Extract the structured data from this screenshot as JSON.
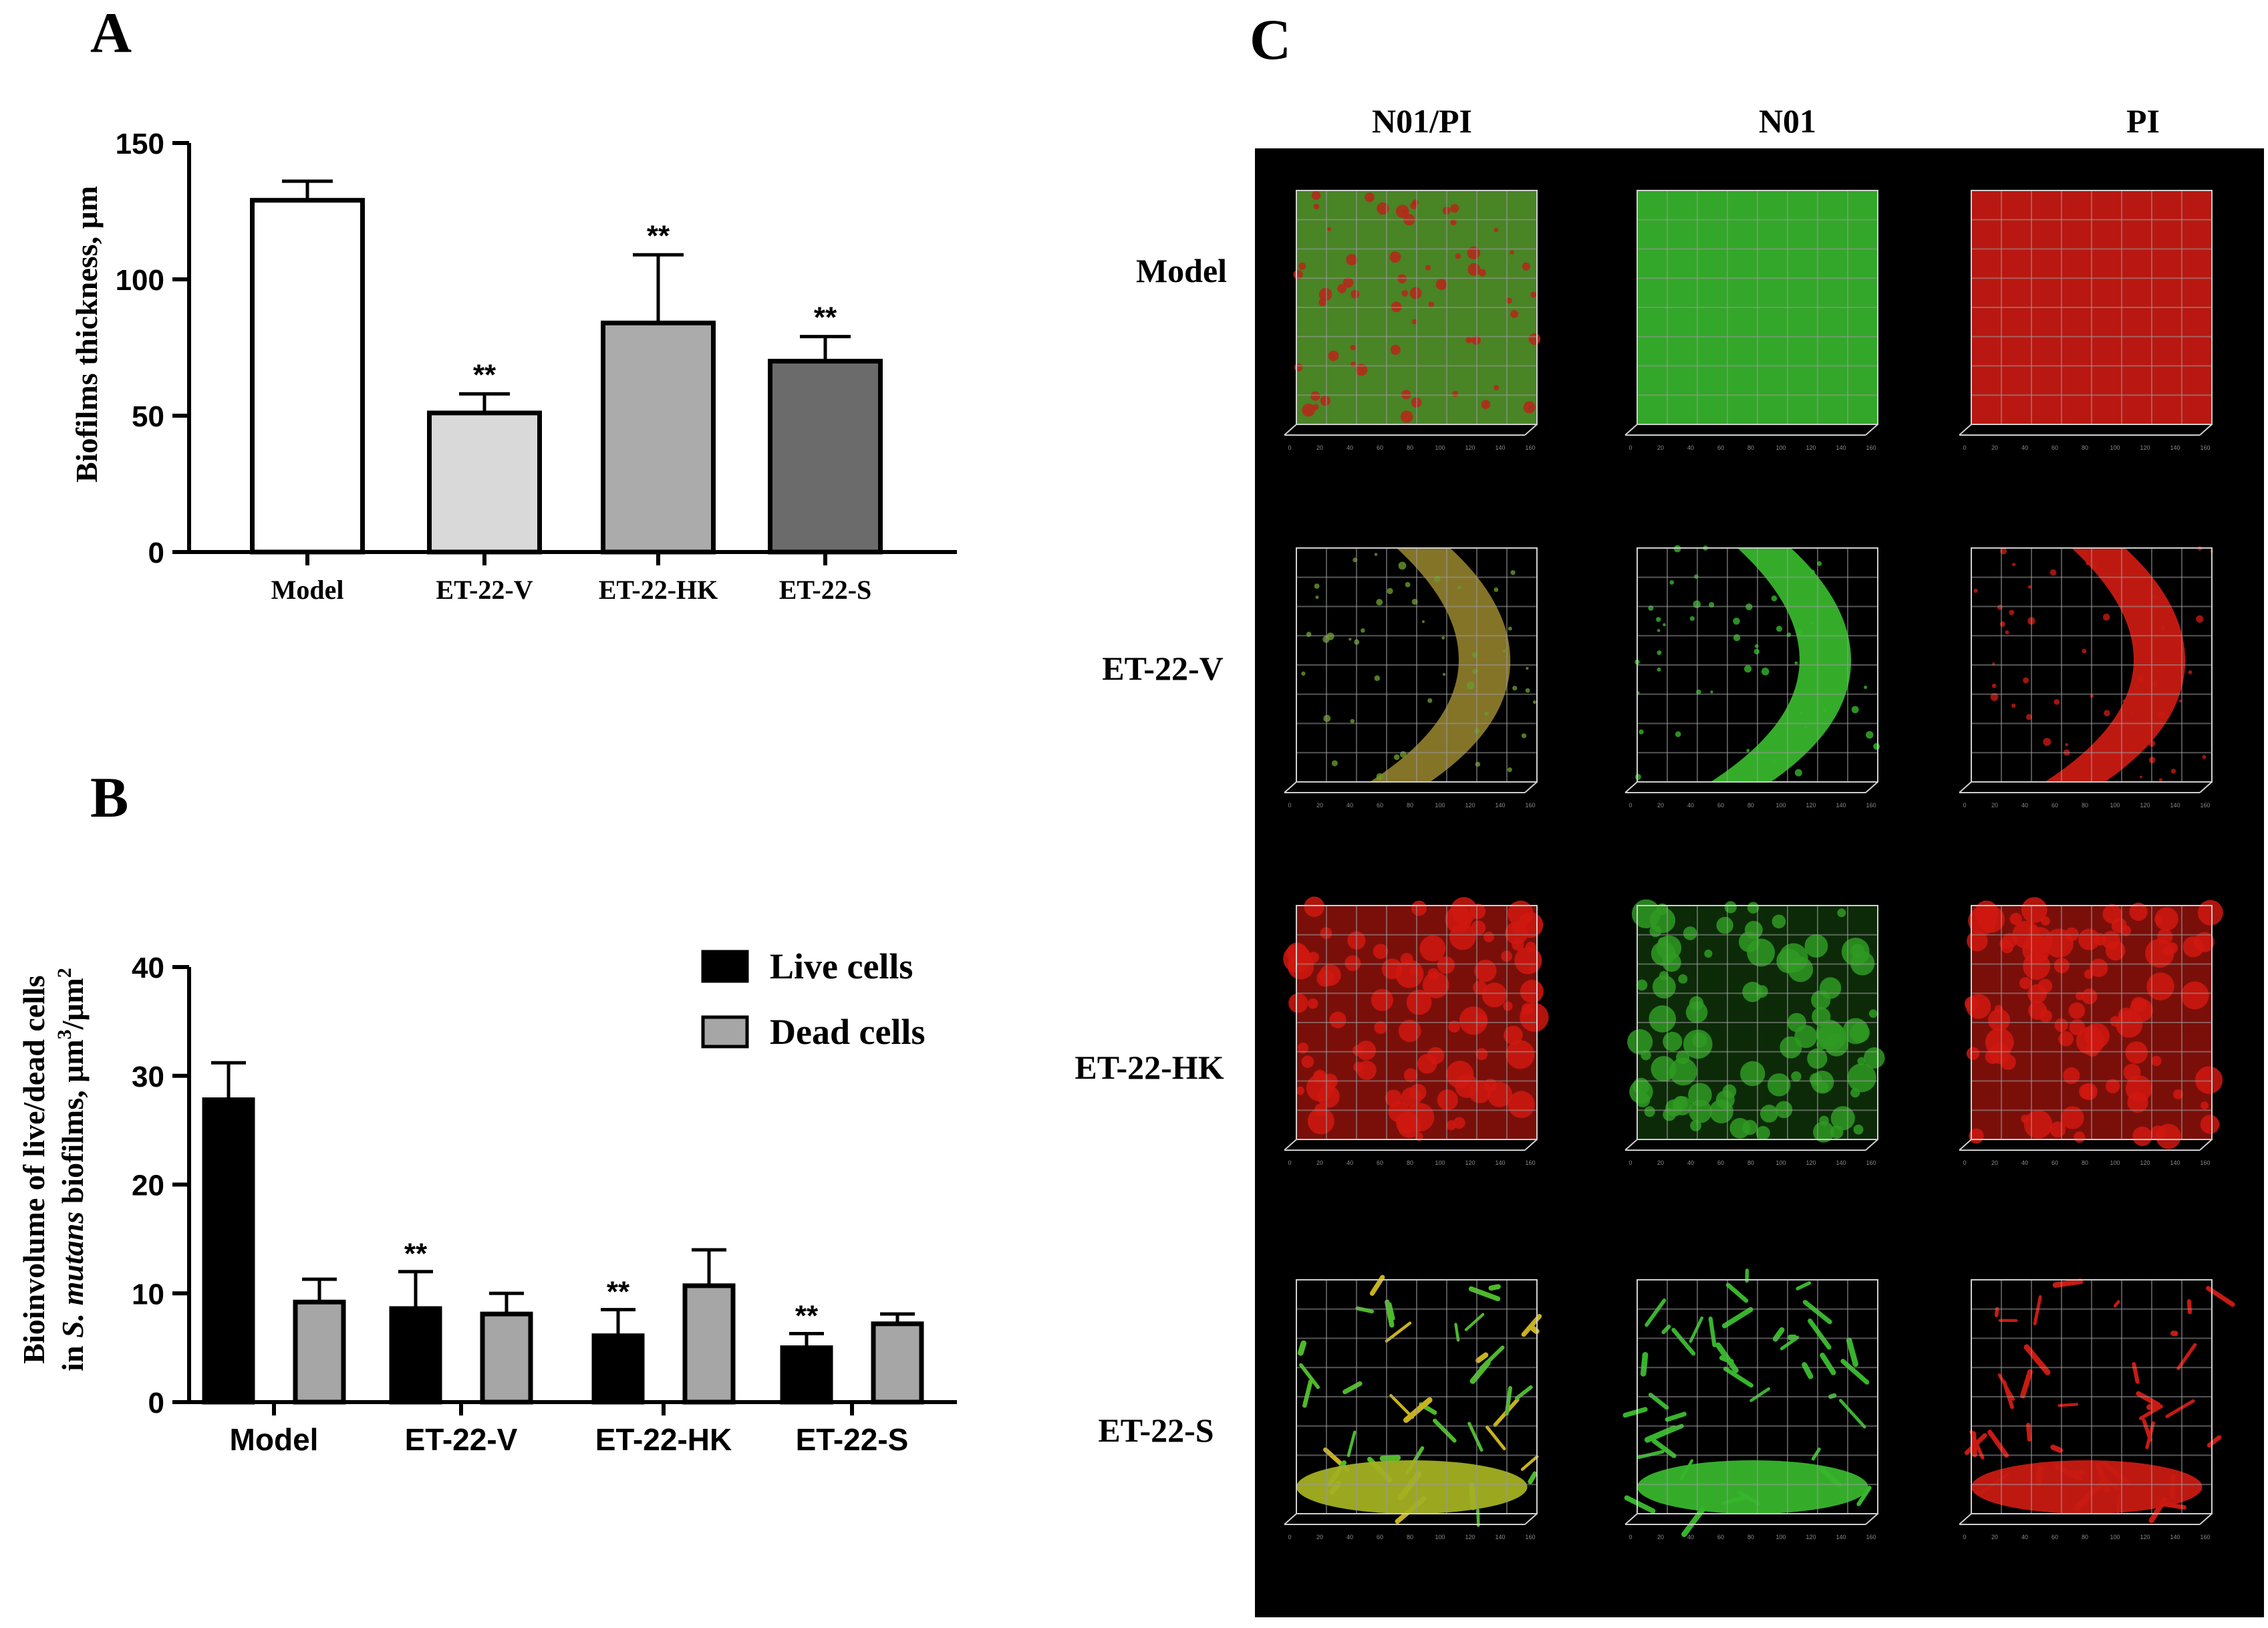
{
  "panels": {
    "A": "A",
    "B": "B",
    "C": "C"
  },
  "chart_data": [
    {
      "panel": "A",
      "type": "bar",
      "categories": [
        "Model",
        "ET-22-V",
        "ET-22-HK",
        "ET-22-S"
      ],
      "values": [
        129,
        51,
        84,
        70
      ],
      "errors": [
        7,
        7,
        25,
        9
      ],
      "significance": [
        "",
        "**",
        "**",
        "**"
      ],
      "bar_colors": [
        "#ffffff",
        "#d9d9d9",
        "#ababab",
        "#6b6b6b"
      ],
      "ylabel": "Biofilms thickness,  μm",
      "ylim": [
        0,
        150
      ],
      "yticks": [
        "0",
        "50",
        "100",
        "150"
      ],
      "grid": false
    },
    {
      "panel": "B",
      "type": "bar",
      "categories": [
        "Model",
        "ET-22-V",
        "ET-22-HK",
        "ET-22-S"
      ],
      "series": [
        {
          "name": "Live cells",
          "color": "#000000",
          "values": [
            27.8,
            8.6,
            6.1,
            5.0
          ],
          "errors": [
            3.4,
            3.4,
            2.4,
            1.3
          ],
          "significance": [
            "",
            "**",
            "**",
            "**"
          ]
        },
        {
          "name": "Dead cells",
          "color": "#a6a6a6",
          "values": [
            9.2,
            8.1,
            10.7,
            7.2
          ],
          "errors": [
            2.1,
            1.9,
            3.3,
            0.9
          ],
          "significance": [
            "",
            "",
            "",
            ""
          ]
        }
      ],
      "ylabel_line1": "Bioinvolume of live/dead cells",
      "ylabel_line2_pre": "in ",
      "ylabel_line2_italic": "S. mutans",
      "ylabel_line2_post": " biofilms,  μm",
      "ylabel_sup1": "3",
      "ylabel_mid": "/μm",
      "ylabel_sup2": "2",
      "ylim": [
        0,
        40
      ],
      "yticks": [
        "0",
        "10",
        "20",
        "30",
        "40"
      ],
      "legend_position": "top-right",
      "grid": false
    }
  ],
  "panel_c": {
    "column_headers": [
      "N01/PI",
      "N01",
      "PI"
    ],
    "row_labels": [
      "Model",
      "ET-22-V",
      "ET-22-HK",
      "ET-22-S"
    ],
    "channel_colors": {
      "N01/PI": "#4f8f28",
      "N01": "#37b52c",
      "PI": "#c81a12"
    },
    "axis_ticks": [
      "0",
      "20",
      "40",
      "60",
      "80",
      "100",
      "120",
      "140",
      "160"
    ]
  }
}
